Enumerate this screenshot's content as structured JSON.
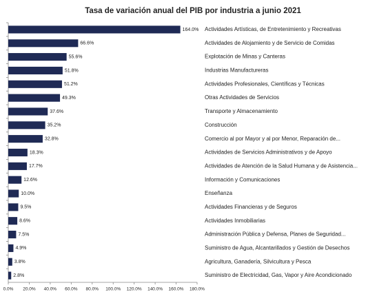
{
  "chart_data": {
    "type": "bar",
    "orientation": "horizontal",
    "title": "Tasa de variación anual del PIB por industria a junio 2021",
    "categories": [
      "Actividades Artísticas, de Entretenimiento y Recreativas",
      "Actividades de Alojamiento y de Servicio de Comidas",
      "Explotación de Minas y Canteras",
      "Industrias Manufactureras",
      "Actividades Profesionales, Científicas y Técnicas",
      "Otras Actividades de Servicios",
      "Transporte y Almacenamiento",
      "Construcción",
      "Comercio al por Mayor y al por Menor, Reparación de...",
      "Actividades de Servicios Administrativos y de Apoyo",
      "Actividades de Atención de la Salud Humana y de Asistencia...",
      "Información y Comunicaciones",
      "Enseñanza",
      "Actividades Financieras y de Seguros",
      "Actividades Inmobiliarias",
      "Administración Pública y Defensa, Planes de Seguridad...",
      "Suministro de Agua, Alcantarillados y Gestión de Desechos",
      "Agricultura, Ganadería, Silvicultura y Pesca",
      "Suministro de Electricidad, Gas, Vapor y Aire Acondicionado"
    ],
    "values": [
      164.0,
      66.6,
      55.6,
      51.8,
      51.2,
      49.3,
      37.6,
      35.2,
      32.8,
      18.3,
      17.7,
      12.6,
      10.0,
      9.5,
      8.6,
      7.5,
      4.9,
      3.8,
      2.8
    ],
    "value_labels": [
      "164.0%",
      "66.6%",
      "55.6%",
      "51.8%",
      "51.2%",
      "49.3%",
      "37.6%",
      "35.2%",
      "32.8%",
      "18.3%",
      "17.7%",
      "12.6%",
      "10.0%",
      "9.5%",
      "8.6%",
      "7.5%",
      "4.9%",
      "3.8%",
      "2.8%"
    ],
    "color": "#1f2a55",
    "xlim": [
      0,
      180
    ],
    "xticks": [
      {
        "value": 0,
        "label": "0.0%"
      },
      {
        "value": 20,
        "label": "20.0%"
      },
      {
        "value": 40,
        "label": "40.0%"
      },
      {
        "value": 60,
        "label": "60.0%"
      },
      {
        "value": 80,
        "label": "80.0%"
      },
      {
        "value": 100,
        "label": "100.0%"
      },
      {
        "value": 120,
        "label": "120.0%"
      },
      {
        "value": 140,
        "label": "140.0%"
      },
      {
        "value": 160,
        "label": "160.0%"
      },
      {
        "value": 180,
        "label": "180.0%"
      }
    ],
    "grid": false
  }
}
